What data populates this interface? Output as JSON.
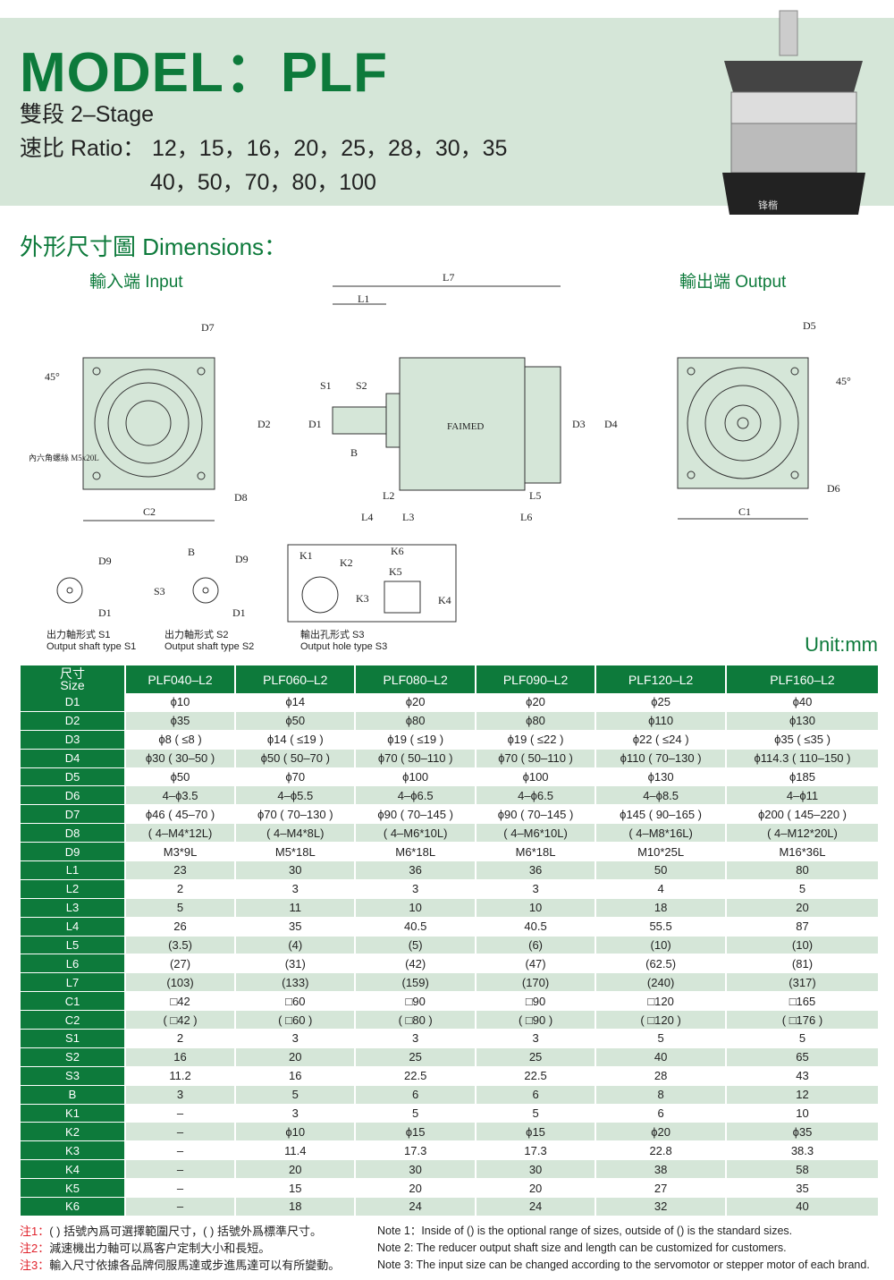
{
  "header": {
    "title": "MODEL：PLF",
    "stage": "雙段  2–Stage",
    "ratio_label": "速比 Ratio：",
    "ratios_line1": "12，15，16，20，25，28，30，35",
    "ratios_line2": "40，50，70，80，100",
    "product_logo": "锋楷"
  },
  "dimensions": {
    "title": "外形尺寸圖 Dimensions：",
    "input_label": "輸入端 Input",
    "output_label": "輸出端 Output",
    "brand": "FAIMED",
    "labels": {
      "L1": "L1",
      "L7": "L7",
      "S1": "S1",
      "S2": "S2",
      "D1": "D1",
      "D2": "D2",
      "D3": "D3",
      "D4": "D4",
      "B": "B",
      "L2": "L2",
      "L3": "L3",
      "L4": "L4",
      "L5": "L5",
      "L6": "L6",
      "C1": "C1",
      "C2": "C2",
      "D5": "D5",
      "D6": "D6",
      "D7": "D7",
      "D8": "D8",
      "D9": "D9",
      "S3": "S3",
      "K1": "K1",
      "K2": "K2",
      "K3": "K3",
      "K4": "K4",
      "K5": "K5",
      "K6": "K6",
      "angle": "45°",
      "screw": "內六角螺絲 M5x20L"
    },
    "shaft_types": [
      {
        "cn": "出力軸形式 S1",
        "en": "Output shaft type S1"
      },
      {
        "cn": "出力軸形式 S2",
        "en": "Output shaft type S2"
      },
      {
        "cn": "輸出孔形式 S3",
        "en": "Output hole type S3"
      }
    ],
    "unit": "Unit:mm"
  },
  "table": {
    "corner_cn": "尺寸",
    "corner_en": "Size",
    "columns": [
      "PLF040–L2",
      "PLF060–L2",
      "PLF080–L2",
      "PLF090–L2",
      "PLF120–L2",
      "PLF160–L2"
    ],
    "rows": [
      {
        "label": "D1",
        "values": [
          "ϕ10",
          "ϕ14",
          "ϕ20",
          "ϕ20",
          "ϕ25",
          "ϕ40"
        ]
      },
      {
        "label": "D2",
        "values": [
          "ϕ35",
          "ϕ50",
          "ϕ80",
          "ϕ80",
          "ϕ110",
          "ϕ130"
        ]
      },
      {
        "label": "D3",
        "values": [
          "ϕ8 ( ≤8 )",
          "ϕ14 ( ≤19 )",
          "ϕ19 ( ≤19 )",
          "ϕ19 ( ≤22 )",
          "ϕ22 ( ≤24 )",
          "ϕ35 ( ≤35 )"
        ]
      },
      {
        "label": "D4",
        "values": [
          "ϕ30 ( 30–50 )",
          "ϕ50 ( 50–70 )",
          "ϕ70 ( 50–110 )",
          "ϕ70 ( 50–110 )",
          "ϕ110 ( 70–130 )",
          "ϕ114.3 ( 110–150 )"
        ]
      },
      {
        "label": "D5",
        "values": [
          "ϕ50",
          "ϕ70",
          "ϕ100",
          "ϕ100",
          "ϕ130",
          "ϕ185"
        ]
      },
      {
        "label": "D6",
        "values": [
          "4–ϕ3.5",
          "4–ϕ5.5",
          "4–ϕ6.5",
          "4–ϕ6.5",
          "4–ϕ8.5",
          "4–ϕ11"
        ]
      },
      {
        "label": "D7",
        "values": [
          "ϕ46 ( 45–70 )",
          "ϕ70 ( 70–130 )",
          "ϕ90 ( 70–145 )",
          "ϕ90 ( 70–145 )",
          "ϕ145 ( 90–165 )",
          "ϕ200 ( 145–220 )"
        ]
      },
      {
        "label": "D8",
        "values": [
          "( 4–M4*12L)",
          "( 4–M4*8L)",
          "( 4–M6*10L)",
          "( 4–M6*10L)",
          "( 4–M8*16L)",
          "( 4–M12*20L)"
        ]
      },
      {
        "label": "D9",
        "values": [
          "M3*9L",
          "M5*18L",
          "M6*18L",
          "M6*18L",
          "M10*25L",
          "M16*36L"
        ]
      },
      {
        "label": "L1",
        "values": [
          "23",
          "30",
          "36",
          "36",
          "50",
          "80"
        ]
      },
      {
        "label": "L2",
        "values": [
          "2",
          "3",
          "3",
          "3",
          "4",
          "5"
        ]
      },
      {
        "label": "L3",
        "values": [
          "5",
          "11",
          "10",
          "10",
          "18",
          "20"
        ]
      },
      {
        "label": "L4",
        "values": [
          "26",
          "35",
          "40.5",
          "40.5",
          "55.5",
          "87"
        ]
      },
      {
        "label": "L5",
        "values": [
          "(3.5)",
          "(4)",
          "(5)",
          "(6)",
          "(10)",
          "(10)"
        ]
      },
      {
        "label": "L6",
        "values": [
          "(27)",
          "(31)",
          "(42)",
          "(47)",
          "(62.5)",
          "(81)"
        ]
      },
      {
        "label": "L7",
        "values": [
          "(103)",
          "(133)",
          "(159)",
          "(170)",
          "(240)",
          "(317)"
        ]
      },
      {
        "label": "C1",
        "values": [
          "□42",
          "□60",
          "□90",
          "□90",
          "□120",
          "□165"
        ]
      },
      {
        "label": "C2",
        "values": [
          "( □42 )",
          "( □60 )",
          "( □80 )",
          "( □90 )",
          "( □120 )",
          "( □176 )"
        ]
      },
      {
        "label": "S1",
        "values": [
          "2",
          "3",
          "3",
          "3",
          "5",
          "5"
        ]
      },
      {
        "label": "S2",
        "values": [
          "16",
          "20",
          "25",
          "25",
          "40",
          "65"
        ]
      },
      {
        "label": "S3",
        "values": [
          "11.2",
          "16",
          "22.5",
          "22.5",
          "28",
          "43"
        ]
      },
      {
        "label": "B",
        "values": [
          "3",
          "5",
          "6",
          "6",
          "8",
          "12"
        ]
      },
      {
        "label": "K1",
        "values": [
          "–",
          "3",
          "5",
          "5",
          "6",
          "10"
        ]
      },
      {
        "label": "K2",
        "values": [
          "–",
          "ϕ10",
          "ϕ15",
          "ϕ15",
          "ϕ20",
          "ϕ35"
        ]
      },
      {
        "label": "K3",
        "values": [
          "–",
          "11.4",
          "17.3",
          "17.3",
          "22.8",
          "38.3"
        ]
      },
      {
        "label": "K4",
        "values": [
          "–",
          "20",
          "30",
          "30",
          "38",
          "58"
        ]
      },
      {
        "label": "K5",
        "values": [
          "–",
          "15",
          "20",
          "20",
          "27",
          "35"
        ]
      },
      {
        "label": "K6",
        "values": [
          "–",
          "18",
          "24",
          "24",
          "32",
          "40"
        ]
      }
    ]
  },
  "notes": {
    "cn": [
      {
        "tag": "注1：",
        "text": "(  ) 括號內爲可選擇範圍尺寸，(  ) 括號外爲標準尺寸。"
      },
      {
        "tag": "注2：",
        "text": "減速機出力軸可以爲客户定制大小和長短。"
      },
      {
        "tag": "注3：",
        "text": "輸入尺寸依據各品牌伺服馬達或步進馬達可以有所變動。"
      }
    ],
    "en": [
      "Note 1：Inside of () is the optional range of sizes, outside of () is the standard sizes.",
      "Note 2: The reducer output shaft size and length can be customized for customers.",
      "Note 3: The input size can be changed according to the servomotor or stepper motor of each brand."
    ]
  },
  "colors": {
    "brand_green": "#0d7a3b",
    "band": "#d5e6d8",
    "note_red": "#e0202a"
  }
}
